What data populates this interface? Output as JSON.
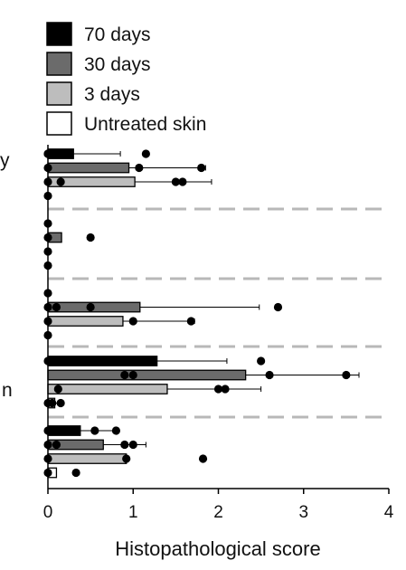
{
  "chart_data": {
    "type": "bar",
    "orientation": "horizontal",
    "xlabel": "Histopathological score",
    "xlim": [
      0,
      4
    ],
    "xticks": [
      "0",
      "1",
      "2",
      "3",
      "4"
    ],
    "legend_position": "top-left, outside plot",
    "side_labels": [
      "y",
      "n"
    ],
    "series": [
      {
        "name": "70 days",
        "color": "#000000"
      },
      {
        "name": "30 days",
        "color": "#6b6b6b"
      },
      {
        "name": "3 days",
        "color": "#bdbdbd"
      },
      {
        "name": "Untreated skin",
        "color": "#ffffff"
      }
    ],
    "groups": [
      {
        "bars": [
          {
            "series": "70 days",
            "mean": 0.3,
            "err": 0.85,
            "points": [
              0,
              0,
              1.15
            ]
          },
          {
            "series": "30 days",
            "mean": 0.95,
            "err": 1.85,
            "points": [
              0,
              1.07,
              1.8
            ]
          },
          {
            "series": "3 days",
            "mean": 1.02,
            "err": 1.92,
            "points": [
              0,
              0.15,
              1.5,
              1.58
            ]
          },
          {
            "series": "Untreated skin",
            "mean": 0,
            "err": 0,
            "points": [
              0
            ]
          }
        ]
      },
      {
        "bars": [
          {
            "series": "70 days",
            "mean": 0,
            "err": 0,
            "points": [
              0
            ]
          },
          {
            "series": "30 days",
            "mean": 0.16,
            "err": 0.16,
            "points": [
              0,
              0.5
            ]
          },
          {
            "series": "3 days",
            "mean": 0,
            "err": 0,
            "points": [
              0
            ]
          },
          {
            "series": "Untreated skin",
            "mean": 0,
            "err": 0,
            "points": [
              0
            ]
          }
        ]
      },
      {
        "bars": [
          {
            "series": "70 days",
            "mean": 0,
            "err": 0,
            "points": [
              0
            ]
          },
          {
            "series": "30 days",
            "mean": 1.08,
            "err": 2.48,
            "points": [
              0,
              0.1,
              0.5,
              2.7
            ]
          },
          {
            "series": "3 days",
            "mean": 0.88,
            "err": 1.72,
            "points": [
              0,
              1.0,
              1.68
            ]
          },
          {
            "series": "Untreated skin",
            "mean": 0,
            "err": 0,
            "points": [
              0
            ]
          }
        ]
      },
      {
        "bars": [
          {
            "series": "70 days",
            "mean": 1.28,
            "err": 2.1,
            "points": [
              0,
              2.5
            ]
          },
          {
            "series": "30 days",
            "mean": 2.32,
            "err": 3.65,
            "points": [
              0.9,
              1.0,
              2.6,
              3.5
            ]
          },
          {
            "series": "3 days",
            "mean": 1.4,
            "err": 2.5,
            "points": [
              0.12,
              2.0,
              2.08
            ]
          },
          {
            "series": "Untreated skin",
            "mean": 0.08,
            "err": 0.16,
            "points": [
              0,
              0.05,
              0.15
            ]
          }
        ]
      },
      {
        "bars": [
          {
            "series": "70 days",
            "mean": 0.38,
            "err": 0.78,
            "points": [
              0,
              0.55,
              0.8
            ]
          },
          {
            "series": "30 days",
            "mean": 0.65,
            "err": 1.15,
            "points": [
              0,
              0.1,
              0.9,
              1.0
            ]
          },
          {
            "series": "3 days",
            "mean": 0.92,
            "err": 0.92,
            "points": [
              0,
              0.92,
              1.82
            ]
          },
          {
            "series": "Untreated skin",
            "mean": 0.1,
            "err": 0.1,
            "points": [
              0,
              0.33
            ]
          }
        ]
      }
    ]
  }
}
